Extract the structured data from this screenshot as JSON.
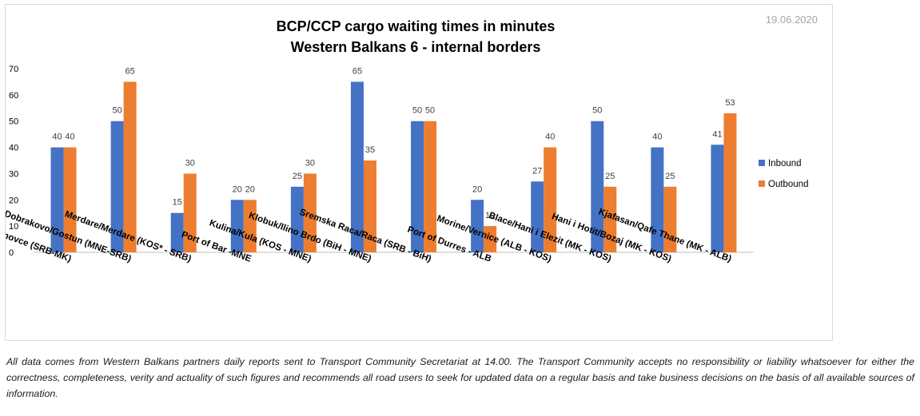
{
  "date": "19.06.2020",
  "footnote": "All data comes from Western Balkans partners daily reports sent to Transport Community Secretariat at 14.00. The Transport Community accepts no responsibility or liability whatsoever for either the correctness, completeness, verity and actuality of such figures and recommends all road users to seek for updated data on a regular basis and take business decisions on the basis of all available sources of information.",
  "colors": {
    "inbound": "#4472c4",
    "outbound": "#ed7d31"
  },
  "chart_data": {
    "type": "bar",
    "title": "BCP/CCP cargo waiting times in minutes",
    "subtitle": "Western Balkans 6 - internal borders",
    "categories": [
      "Presevo/ Tabanovce (SRB-MK)",
      "Dobrakovo/Gostun (MNE-SRB)",
      "Merdare/Merdare (KOS* - SRB)",
      "Port of Bar -MNE",
      "Kulina/Kula (KOS - MNE)",
      "Klobuk/Ilino Brdo (BiH - MNE)",
      "Sremska Raca/Raca (SRB - BiH)",
      "Port of Durres - ALB",
      "Morine/Vernice (ALB - KOS)",
      "Blace/Hani i Elezit (MK - KOS)",
      "Hani i Hotit/Bozaj (MK - KOS)",
      "Kjafasan/Qafe Thane (MK - ALB)"
    ],
    "series": [
      {
        "name": "Inbound",
        "values": [
          40,
          50,
          15,
          20,
          25,
          65,
          50,
          20,
          27,
          50,
          40,
          41
        ]
      },
      {
        "name": "Outbound",
        "values": [
          40,
          65,
          30,
          20,
          30,
          35,
          50,
          10,
          40,
          25,
          25,
          53
        ]
      }
    ],
    "ylim": [
      0,
      70
    ],
    "yticks": [
      0,
      10,
      20,
      30,
      40,
      50,
      60,
      70
    ],
    "grid": false,
    "legend": "right"
  }
}
